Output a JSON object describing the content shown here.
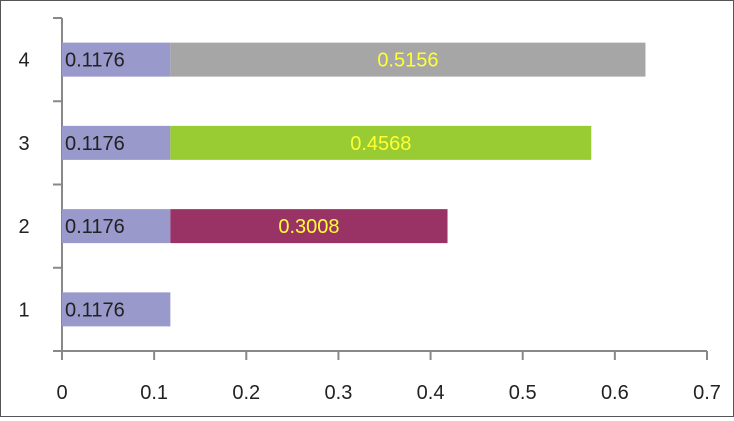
{
  "chart_data": {
    "type": "bar",
    "orientation": "horizontal",
    "stacked": true,
    "categories": [
      "1",
      "2",
      "3",
      "4"
    ],
    "series": [
      {
        "values": [
          0.1176,
          0.1176,
          0.1176,
          0.1176
        ],
        "labels": [
          "0.1176",
          "0.1176",
          "0.1176",
          "0.1176"
        ],
        "color": "#9999cc",
        "label_color": "#222222"
      },
      {
        "values": [
          null,
          0.3008,
          0.4568,
          0.5156
        ],
        "labels": [
          "",
          "0.3008",
          "0.4568",
          "0.5156"
        ],
        "point_colors": [
          null,
          "#993366",
          "#99cc33",
          "#a6a6a6"
        ],
        "label_color": "#ffff33"
      }
    ],
    "xlim": [
      0,
      0.7
    ],
    "xticks": [
      "0",
      "0.1",
      "0.2",
      "0.3",
      "0.4",
      "0.5",
      "0.6",
      "0.7"
    ],
    "grid": false,
    "legend": "none",
    "title": "",
    "xlabel": "",
    "ylabel": ""
  }
}
